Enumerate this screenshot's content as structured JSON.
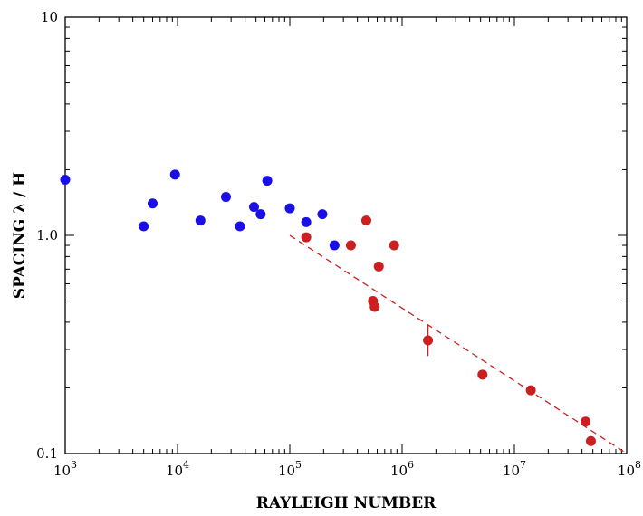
{
  "chart_data": {
    "type": "scatter",
    "title": "",
    "xlabel": "RAYLEIGH NUMBER",
    "ylabel": "SPACING λ / H",
    "xscale": "log",
    "yscale": "log",
    "xlim": [
      1000,
      100000000
    ],
    "ylim": [
      0.1,
      10
    ],
    "grid": false,
    "legend": "none",
    "x_ticks": [
      {
        "value": 1000,
        "base": "10",
        "exp": "3"
      },
      {
        "value": 10000,
        "base": "10",
        "exp": "4"
      },
      {
        "value": 100000,
        "base": "10",
        "exp": "5"
      },
      {
        "value": 1000000,
        "base": "10",
        "exp": "6"
      },
      {
        "value": 10000000,
        "base": "10",
        "exp": "7"
      },
      {
        "value": 100000000,
        "base": "10",
        "exp": "8"
      }
    ],
    "y_ticks": [
      {
        "value": 0.1,
        "label": "0.1"
      },
      {
        "value": 1,
        "label": "1.0"
      },
      {
        "value": 10,
        "label": "10"
      }
    ],
    "series": [
      {
        "color": "#1a10e6",
        "points": [
          {
            "x": 1000,
            "y": 1.8
          },
          {
            "x": 5000,
            "y": 1.1
          },
          {
            "x": 6000,
            "y": 1.4
          },
          {
            "x": 9500,
            "y": 1.9
          },
          {
            "x": 16000,
            "y": 1.17
          },
          {
            "x": 27000,
            "y": 1.5
          },
          {
            "x": 36000,
            "y": 1.1
          },
          {
            "x": 48000,
            "y": 1.35
          },
          {
            "x": 55000,
            "y": 1.25
          },
          {
            "x": 63000,
            "y": 1.78
          },
          {
            "x": 100000,
            "y": 1.33
          },
          {
            "x": 140000,
            "y": 1.15
          },
          {
            "x": 195000,
            "y": 1.25
          },
          {
            "x": 250000,
            "y": 0.9
          }
        ]
      },
      {
        "color": "#cc1f1f",
        "points": [
          {
            "x": 140000,
            "y": 0.98
          },
          {
            "x": 350000,
            "y": 0.9
          },
          {
            "x": 480000,
            "y": 1.17
          },
          {
            "x": 550000,
            "y": 0.5
          },
          {
            "x": 570000,
            "y": 0.47
          },
          {
            "x": 620000,
            "y": 0.72
          },
          {
            "x": 850000,
            "y": 0.9
          },
          {
            "x": 1700000,
            "y": 0.33,
            "err": [
              0.28,
              0.39
            ]
          },
          {
            "x": 5200000,
            "y": 0.23
          },
          {
            "x": 14000000,
            "y": 0.195
          },
          {
            "x": 43000000,
            "y": 0.14
          },
          {
            "x": 48000000,
            "y": 0.114
          }
        ]
      }
    ],
    "fit_line": {
      "color": "#cc1f1f",
      "style": "dashed",
      "x": [
        100000,
        100000000
      ],
      "y": [
        1.0,
        0.1
      ]
    }
  }
}
